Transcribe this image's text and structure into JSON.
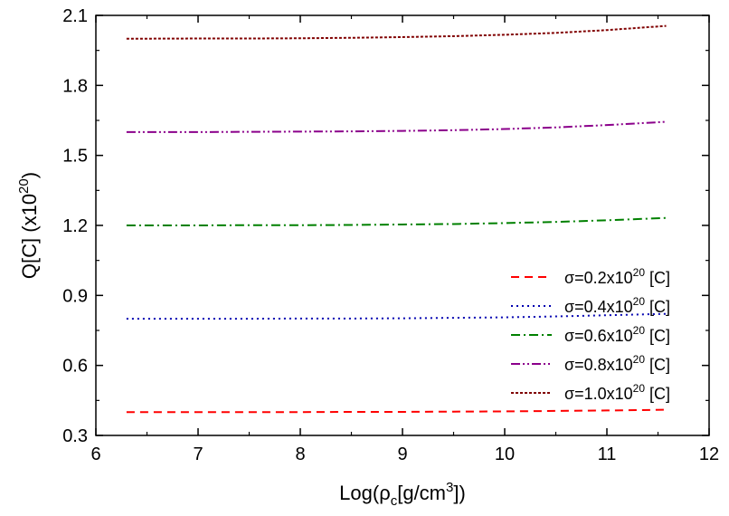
{
  "chart_data": {
    "type": "line",
    "xlabel": "Log(ρc[g/cm3])",
    "xlabel_parts": {
      "pre": "Log(ρ",
      "sub": "c",
      "mid": "[g/cm",
      "sup": "3",
      "post": "])"
    },
    "ylabel": "Q[C] (x1020)",
    "ylabel_parts": {
      "pre": "Q[C] (x10",
      "sup": "20",
      "post": ")"
    },
    "xlim": [
      6,
      12
    ],
    "ylim": [
      0.3,
      2.1
    ],
    "xticks": [
      6,
      7,
      8,
      9,
      10,
      11,
      12
    ],
    "yticks": [
      0.3,
      0.6,
      0.9,
      1.2,
      1.5,
      1.8,
      2.1
    ],
    "xtick_labels": [
      "6",
      "7",
      "8",
      "9",
      "10",
      "11",
      "12"
    ],
    "ytick_labels": [
      "0.3",
      "0.6",
      "0.9",
      "1.2",
      "1.5",
      "1.8",
      "2.1"
    ],
    "grid": false,
    "legend_position": "right-middle",
    "x": [
      6.3,
      7.0,
      7.5,
      8.0,
      8.5,
      9.0,
      9.5,
      10.0,
      10.5,
      11.0,
      11.58
    ],
    "series": [
      {
        "name": "σ=0.2x1020 [C]",
        "name_parts": {
          "pre": "σ=0.2x10",
          "sup": "20",
          "post": " [C]"
        },
        "color": "#ff0000",
        "dash": "dashed",
        "values": [
          0.4,
          0.4,
          0.4,
          0.4,
          0.401,
          0.401,
          0.402,
          0.403,
          0.405,
          0.407,
          0.41
        ]
      },
      {
        "name": "σ=0.4x1020 [C]",
        "name_parts": {
          "pre": "σ=0.4x10",
          "sup": "20",
          "post": " [C]"
        },
        "color": "#0000b0",
        "dash": "dotted",
        "values": [
          0.8,
          0.8,
          0.8,
          0.801,
          0.801,
          0.802,
          0.804,
          0.806,
          0.81,
          0.815,
          0.821
        ]
      },
      {
        "name": "σ=0.6x1020 [C]",
        "name_parts": {
          "pre": "σ=0.6x10",
          "sup": "20",
          "post": " [C]"
        },
        "color": "#008000",
        "dash": "dash-dot",
        "values": [
          1.2,
          1.2,
          1.201,
          1.201,
          1.202,
          1.204,
          1.206,
          1.21,
          1.215,
          1.222,
          1.232
        ]
      },
      {
        "name": "σ=0.8x1020 [C]",
        "name_parts": {
          "pre": "σ=0.8x10",
          "sup": "20",
          "post": " [C]"
        },
        "color": "#8b008b",
        "dash": "dash-dot-dot",
        "values": [
          1.6,
          1.6,
          1.601,
          1.602,
          1.603,
          1.605,
          1.608,
          1.613,
          1.62,
          1.63,
          1.644
        ]
      },
      {
        "name": "σ=1.0x1020 [C]",
        "name_parts": {
          "pre": "σ=1.0x10",
          "sup": "20",
          "post": " [C]"
        },
        "color": "#800000",
        "dash": "short-dash",
        "values": [
          2.0,
          2.001,
          2.001,
          2.002,
          2.004,
          2.007,
          2.011,
          2.017,
          2.025,
          2.037,
          2.055
        ]
      }
    ]
  }
}
